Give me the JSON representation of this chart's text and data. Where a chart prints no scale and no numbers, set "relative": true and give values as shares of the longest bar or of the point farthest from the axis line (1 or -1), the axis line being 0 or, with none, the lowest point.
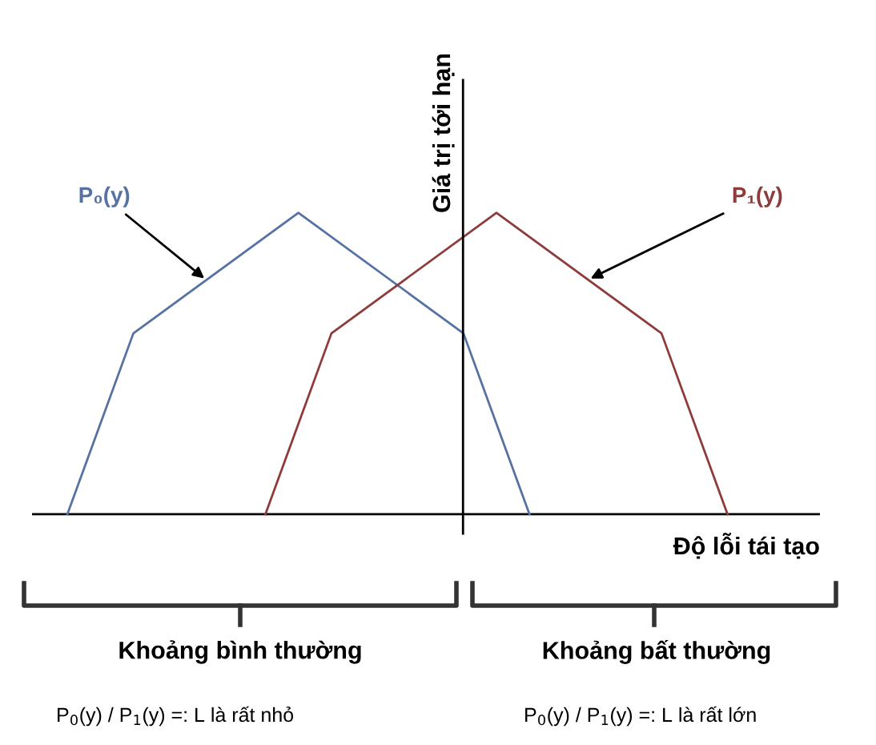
{
  "chart_data": {
    "type": "line",
    "relative": true,
    "xlabel": "Độ lỗi tái tạo",
    "marker": "none",
    "line_style": "solid",
    "categories": [
      null,
      null,
      null,
      null,
      null,
      null,
      null,
      null,
      null,
      null,
      null,
      null,
      null,
      null,
      null,
      null,
      null,
      null,
      null,
      null,
      null
    ],
    "series": [
      {
        "name": "P₀(y)",
        "color": "#5572a3",
        "values": [
          0,
          null,
          0.6,
          null,
          null,
          null,
          null,
          1,
          null,
          null,
          null,
          null,
          0.6,
          null,
          0,
          null,
          null,
          null,
          null,
          null,
          null
        ]
      },
      {
        "name": "P₁(y)",
        "color": "#8e3b3b",
        "values": [
          null,
          null,
          null,
          null,
          null,
          null,
          0,
          null,
          0.6,
          null,
          null,
          null,
          null,
          1,
          null,
          null,
          null,
          null,
          0.6,
          null,
          0
        ]
      }
    ],
    "ylabel": "Giá trị tới hạn",
    "annotations": [
      "Khoảng bình thường",
      "Khoảng bất thường",
      "P$_{0}$(y) / P$_{1}$(y) =: L là rất nhỏ",
      "P$_{0}$(y) / P$_{1}$(y) =: L là rất lớn"
    ]
  }
}
